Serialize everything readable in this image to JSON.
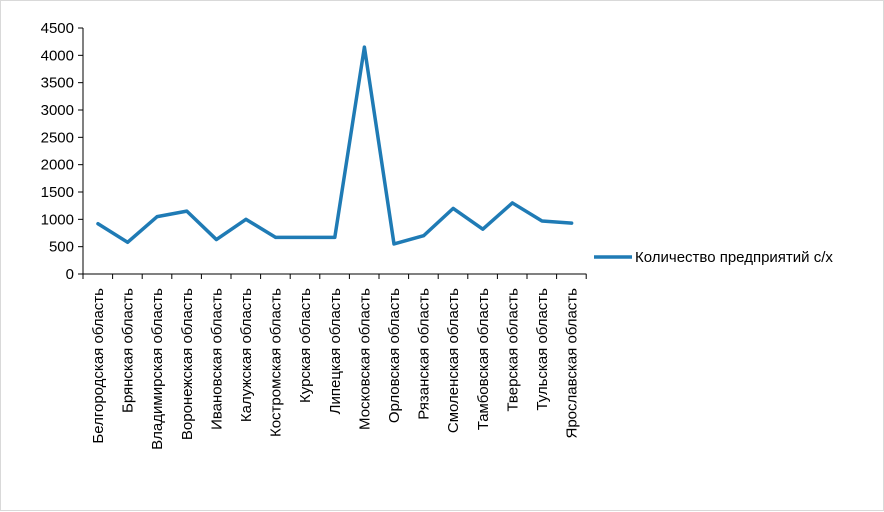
{
  "chart_data": {
    "type": "line",
    "title": "",
    "xlabel": "",
    "ylabel": "",
    "ylim": [
      0,
      4500
    ],
    "yticks": [
      0,
      500,
      1000,
      1500,
      2000,
      2500,
      3000,
      3500,
      4000,
      4500
    ],
    "grid": false,
    "legend_position": "right",
    "categories": [
      "Белгородская область",
      "Брянская область",
      "Владимирская область",
      "Воронежская область",
      "Ивановская область",
      "Калужская область",
      "Костромская область",
      "Курская область",
      "Липецкая область",
      "Московская область",
      "Орловская область",
      "Рязанская область",
      "Смоленская область",
      "Тамбовская область",
      "Тверская область",
      "Тульская область",
      "Ярославская область"
    ],
    "series": [
      {
        "name": "Количество предприятий с/х",
        "color": "#1f7bb5",
        "values": [
          920,
          580,
          1050,
          1150,
          630,
          1000,
          670,
          670,
          670,
          4150,
          550,
          700,
          1200,
          820,
          1300,
          970,
          930
        ]
      }
    ]
  }
}
